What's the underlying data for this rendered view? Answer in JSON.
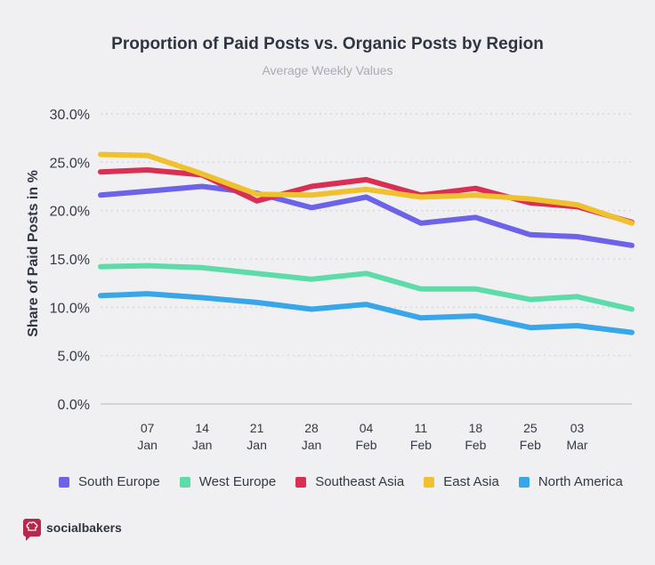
{
  "chart_data": {
    "type": "line",
    "title": "Proportion of Paid Posts vs. Organic Posts by Region",
    "subtitle": "Average Weekly Values",
    "xlabel": "",
    "ylabel": "Share of Paid Posts in %",
    "ylim": [
      0,
      30
    ],
    "yticks": [
      "0.0%",
      "5.0%",
      "10.0%",
      "15.0%",
      "20.0%",
      "25.0%",
      "30.0%"
    ],
    "xtick_labels": [
      {
        "day": "07",
        "month": "Jan"
      },
      {
        "day": "14",
        "month": "Jan"
      },
      {
        "day": "21",
        "month": "Jan"
      },
      {
        "day": "28",
        "month": "Jan"
      },
      {
        "day": "04",
        "month": "Feb"
      },
      {
        "day": "11",
        "month": "Feb"
      },
      {
        "day": "18",
        "month": "Feb"
      },
      {
        "day": "25",
        "month": "Feb"
      },
      {
        "day": "03",
        "month": "Mar"
      }
    ],
    "x": [
      "2019-01-01",
      "2019-01-07",
      "2019-01-14",
      "2019-01-21",
      "2019-01-28",
      "2019-02-04",
      "2019-02-11",
      "2019-02-18",
      "2019-02-25",
      "2019-03-03",
      "2019-03-10"
    ],
    "grid": true,
    "legend_position": "bottom",
    "series": [
      {
        "name": "South Europe",
        "color": "#6c63e8",
        "values": [
          21.6,
          22.0,
          22.5,
          21.8,
          20.3,
          21.4,
          18.7,
          19.3,
          17.5,
          17.3,
          16.4
        ]
      },
      {
        "name": "West Europe",
        "color": "#5ddba9",
        "values": [
          14.2,
          14.3,
          14.1,
          13.5,
          12.9,
          13.5,
          11.9,
          11.9,
          10.8,
          11.1,
          9.8
        ]
      },
      {
        "name": "Southeast Asia",
        "color": "#d92f55",
        "values": [
          24.0,
          24.2,
          23.7,
          21.0,
          22.5,
          23.2,
          21.6,
          22.3,
          20.8,
          20.4,
          18.8
        ]
      },
      {
        "name": "East Asia",
        "color": "#f0c12f",
        "values": [
          25.8,
          25.7,
          23.8,
          21.7,
          21.6,
          22.2,
          21.4,
          21.6,
          21.2,
          20.6,
          18.7
        ]
      },
      {
        "name": "North America",
        "color": "#3aa6ea",
        "values": [
          11.2,
          11.4,
          11.0,
          10.5,
          9.8,
          10.3,
          8.9,
          9.1,
          7.9,
          8.1,
          7.4
        ]
      }
    ]
  },
  "brand": {
    "name": "socialbakers",
    "logo_color": "#b7284a",
    "logo_icon": "chef-hat-icon"
  }
}
